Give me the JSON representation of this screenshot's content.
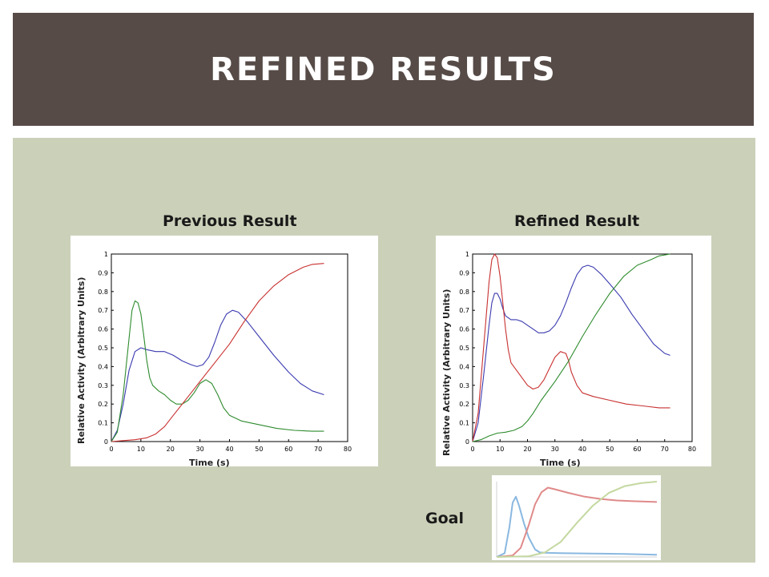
{
  "slide": {
    "title": "REFINED RESULTS"
  },
  "colors": {
    "title_band": "#564b47",
    "content_bg": "#cbd1b9",
    "blue": "#3a3ab0",
    "green": "#2e8b2e",
    "red": "#c83030",
    "goal_blue": "#8ab8e0",
    "goal_red": "#e08a8a",
    "goal_green": "#c4d8a0"
  },
  "chart_data": [
    {
      "type": "line",
      "title": "Previous Result",
      "xlabel": "Time (s)",
      "ylabel": "Relative Activity (Arbitrary Units)",
      "xlim": [
        0,
        80
      ],
      "ylim": [
        0,
        1
      ],
      "xticks": [
        "0",
        "10",
        "20",
        "30",
        "40",
        "50",
        "60",
        "70",
        "80"
      ],
      "yticks": [
        "0",
        "0.1",
        "0.2",
        "0.3",
        "0.4",
        "0.5",
        "0.6",
        "0.7",
        "0.8",
        "0.9",
        "1"
      ],
      "grid": false,
      "series": [
        {
          "color": "blue",
          "points": [
            [
              0,
              0
            ],
            [
              2,
              0.06
            ],
            [
              4,
              0.2
            ],
            [
              6,
              0.38
            ],
            [
              8,
              0.48
            ],
            [
              10,
              0.5
            ],
            [
              12,
              0.49
            ],
            [
              15,
              0.48
            ],
            [
              18,
              0.48
            ],
            [
              21,
              0.46
            ],
            [
              24,
              0.43
            ],
            [
              27,
              0.41
            ],
            [
              29,
              0.4
            ],
            [
              31,
              0.41
            ],
            [
              33,
              0.45
            ],
            [
              35,
              0.53
            ],
            [
              37,
              0.62
            ],
            [
              39,
              0.68
            ],
            [
              41,
              0.7
            ],
            [
              43,
              0.69
            ],
            [
              46,
              0.64
            ],
            [
              50,
              0.56
            ],
            [
              55,
              0.46
            ],
            [
              60,
              0.37
            ],
            [
              64,
              0.31
            ],
            [
              68,
              0.27
            ],
            [
              72,
              0.25
            ]
          ]
        },
        {
          "color": "green",
          "points": [
            [
              0,
              0
            ],
            [
              2,
              0.05
            ],
            [
              4,
              0.25
            ],
            [
              6,
              0.55
            ],
            [
              7,
              0.7
            ],
            [
              8,
              0.75
            ],
            [
              9,
              0.74
            ],
            [
              10,
              0.68
            ],
            [
              11,
              0.56
            ],
            [
              12,
              0.43
            ],
            [
              13,
              0.34
            ],
            [
              14,
              0.3
            ],
            [
              16,
              0.27
            ],
            [
              18,
              0.25
            ],
            [
              20,
              0.22
            ],
            [
              22,
              0.2
            ],
            [
              24,
              0.2
            ],
            [
              26,
              0.22
            ],
            [
              28,
              0.26
            ],
            [
              30,
              0.31
            ],
            [
              32,
              0.33
            ],
            [
              34,
              0.31
            ],
            [
              36,
              0.25
            ],
            [
              38,
              0.18
            ],
            [
              40,
              0.14
            ],
            [
              44,
              0.11
            ],
            [
              50,
              0.09
            ],
            [
              56,
              0.07
            ],
            [
              62,
              0.06
            ],
            [
              68,
              0.055
            ],
            [
              72,
              0.055
            ]
          ]
        },
        {
          "color": "red",
          "points": [
            [
              0,
              0
            ],
            [
              4,
              0.005
            ],
            [
              8,
              0.01
            ],
            [
              12,
              0.02
            ],
            [
              15,
              0.04
            ],
            [
              18,
              0.08
            ],
            [
              21,
              0.14
            ],
            [
              24,
              0.2
            ],
            [
              27,
              0.26
            ],
            [
              30,
              0.32
            ],
            [
              35,
              0.42
            ],
            [
              40,
              0.52
            ],
            [
              45,
              0.64
            ],
            [
              50,
              0.75
            ],
            [
              55,
              0.83
            ],
            [
              60,
              0.89
            ],
            [
              65,
              0.93
            ],
            [
              68,
              0.945
            ],
            [
              72,
              0.95
            ]
          ]
        }
      ]
    },
    {
      "type": "line",
      "title": "Refined Result",
      "xlabel": "Time (s)",
      "ylabel": "Relative Activity (Arbitrary Units)",
      "xlim": [
        0,
        80
      ],
      "ylim": [
        0,
        1
      ],
      "xticks": [
        "0",
        "10",
        "20",
        "30",
        "40",
        "50",
        "60",
        "70",
        "80"
      ],
      "yticks": [
        "0",
        "0.1",
        "0.2",
        "0.3",
        "0.4",
        "0.5",
        "0.6",
        "0.7",
        "0.8",
        "0.9",
        "1"
      ],
      "grid": false,
      "series": [
        {
          "color": "blue",
          "points": [
            [
              0,
              0
            ],
            [
              2,
              0.1
            ],
            [
              4,
              0.35
            ],
            [
              6,
              0.62
            ],
            [
              7,
              0.74
            ],
            [
              8,
              0.79
            ],
            [
              9,
              0.79
            ],
            [
              10,
              0.76
            ],
            [
              11,
              0.71
            ],
            [
              12,
              0.67
            ],
            [
              14,
              0.65
            ],
            [
              16,
              0.65
            ],
            [
              18,
              0.64
            ],
            [
              20,
              0.62
            ],
            [
              22,
              0.6
            ],
            [
              24,
              0.58
            ],
            [
              26,
              0.58
            ],
            [
              28,
              0.59
            ],
            [
              30,
              0.62
            ],
            [
              32,
              0.67
            ],
            [
              34,
              0.74
            ],
            [
              36,
              0.82
            ],
            [
              38,
              0.89
            ],
            [
              40,
              0.93
            ],
            [
              42,
              0.94
            ],
            [
              44,
              0.93
            ],
            [
              47,
              0.89
            ],
            [
              50,
              0.84
            ],
            [
              54,
              0.77
            ],
            [
              58,
              0.68
            ],
            [
              62,
              0.6
            ],
            [
              66,
              0.52
            ],
            [
              70,
              0.47
            ],
            [
              72,
              0.46
            ]
          ]
        },
        {
          "color": "red",
          "points": [
            [
              0,
              0
            ],
            [
              2,
              0.15
            ],
            [
              4,
              0.5
            ],
            [
              6,
              0.85
            ],
            [
              7,
              0.97
            ],
            [
              8,
              1.0
            ],
            [
              9,
              0.98
            ],
            [
              10,
              0.88
            ],
            [
              11,
              0.74
            ],
            [
              12,
              0.6
            ],
            [
              13,
              0.49
            ],
            [
              14,
              0.42
            ],
            [
              16,
              0.38
            ],
            [
              18,
              0.34
            ],
            [
              20,
              0.3
            ],
            [
              22,
              0.28
            ],
            [
              24,
              0.29
            ],
            [
              26,
              0.33
            ],
            [
              28,
              0.39
            ],
            [
              30,
              0.45
            ],
            [
              32,
              0.48
            ],
            [
              34,
              0.47
            ],
            [
              35,
              0.43
            ],
            [
              36,
              0.37
            ],
            [
              38,
              0.3
            ],
            [
              40,
              0.26
            ],
            [
              44,
              0.24
            ],
            [
              50,
              0.22
            ],
            [
              56,
              0.2
            ],
            [
              62,
              0.19
            ],
            [
              68,
              0.18
            ],
            [
              72,
              0.18
            ]
          ]
        },
        {
          "color": "green",
          "points": [
            [
              0,
              0
            ],
            [
              3,
              0.01
            ],
            [
              6,
              0.03
            ],
            [
              9,
              0.045
            ],
            [
              12,
              0.05
            ],
            [
              15,
              0.06
            ],
            [
              18,
              0.08
            ],
            [
              20,
              0.11
            ],
            [
              22,
              0.15
            ],
            [
              25,
              0.22
            ],
            [
              30,
              0.32
            ],
            [
              35,
              0.43
            ],
            [
              40,
              0.56
            ],
            [
              45,
              0.68
            ],
            [
              50,
              0.79
            ],
            [
              55,
              0.88
            ],
            [
              60,
              0.94
            ],
            [
              65,
              0.97
            ],
            [
              68,
              0.99
            ],
            [
              72,
              1.0
            ]
          ]
        }
      ]
    }
  ],
  "goal": {
    "label": "Goal",
    "chart_data": {
      "type": "line",
      "series": [
        {
          "color": "goal_blue",
          "points": [
            [
              0,
              0
            ],
            [
              5,
              0.05
            ],
            [
              8,
              0.4
            ],
            [
              10,
              0.72
            ],
            [
              12,
              0.8
            ],
            [
              14,
              0.68
            ],
            [
              17,
              0.45
            ],
            [
              20,
              0.26
            ],
            [
              24,
              0.1
            ],
            [
              27,
              0.06
            ],
            [
              30,
              0.055
            ],
            [
              40,
              0.05
            ],
            [
              60,
              0.045
            ],
            [
              80,
              0.04
            ],
            [
              100,
              0.03
            ]
          ]
        },
        {
          "color": "goal_red",
          "points": [
            [
              0,
              0
            ],
            [
              10,
              0.02
            ],
            [
              15,
              0.12
            ],
            [
              20,
              0.42
            ],
            [
              24,
              0.7
            ],
            [
              28,
              0.86
            ],
            [
              32,
              0.92
            ],
            [
              36,
              0.9
            ],
            [
              45,
              0.85
            ],
            [
              55,
              0.8
            ],
            [
              65,
              0.77
            ],
            [
              75,
              0.75
            ],
            [
              85,
              0.74
            ],
            [
              100,
              0.73
            ]
          ]
        },
        {
          "color": "goal_green",
          "points": [
            [
              0,
              0
            ],
            [
              20,
              0.01
            ],
            [
              30,
              0.06
            ],
            [
              40,
              0.2
            ],
            [
              50,
              0.45
            ],
            [
              60,
              0.68
            ],
            [
              70,
              0.85
            ],
            [
              80,
              0.94
            ],
            [
              90,
              0.98
            ],
            [
              100,
              1.0
            ]
          ]
        }
      ]
    }
  }
}
